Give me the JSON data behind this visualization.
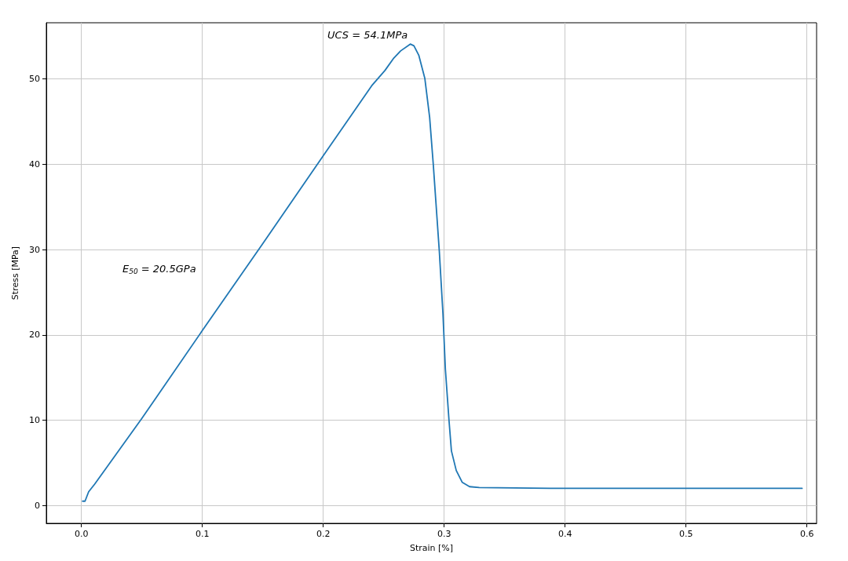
{
  "chart_data": {
    "type": "line",
    "xlabel": "Strain [%]",
    "ylabel": "Stress [MPa]",
    "annotations": [
      "UCS = 54.1MPa",
      "E$_{50}$ = 20.5GPa"
    ],
    "xlim": [
      -0.029,
      0.608
    ],
    "ylim": [
      -2.1,
      56.6
    ],
    "xticks": [
      {
        "value": 0,
        "label": "0.0"
      },
      0.1,
      0.2,
      0.3,
      0.4,
      0.5,
      0.6
    ],
    "yticks": [
      0,
      10,
      20,
      30,
      40,
      50
    ],
    "grid": true,
    "marker": "none",
    "line_style": "solid",
    "series": [
      {
        "color": "#1f77b4",
        "x": [
          0.001,
          0.003,
          0.006,
          0.011,
          0.05,
          0.1,
          0.15,
          0.2,
          0.24,
          0.251,
          0.258,
          0.264,
          0.272,
          0.275,
          0.279,
          0.284,
          0.288,
          0.291,
          0.296,
          0.299,
          0.301,
          0.304,
          0.306,
          0.31,
          0.315,
          0.321,
          0.329,
          0.388,
          0.5,
          0.596
        ],
        "values": [
          0.5,
          0.5,
          1.6,
          2.5,
          10.2,
          20.5,
          30.7,
          41.0,
          49.2,
          51.0,
          52.4,
          53.3,
          54.1,
          53.9,
          52.8,
          50.1,
          45.5,
          40.0,
          29.8,
          22.5,
          16.0,
          10.0,
          6.4,
          4.1,
          2.7,
          2.2,
          2.1,
          2.0,
          2.0,
          2.0
        ]
      }
    ]
  }
}
